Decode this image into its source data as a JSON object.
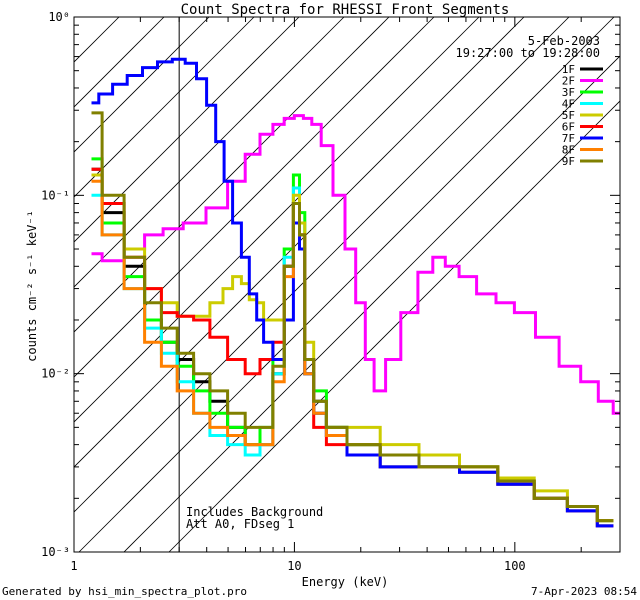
{
  "chart_data": {
    "type": "line",
    "title": "Count Spectra for RHESSI Front Segments",
    "xlabel": "Energy (keV)",
    "ylabel": "counts cm⁻² s⁻¹ keV⁻¹",
    "xscale": "log",
    "yscale": "log",
    "xlim": [
      1,
      300
    ],
    "ylim": [
      0.001,
      1
    ],
    "x_ticks": [
      {
        "value": 1,
        "label": "1"
      },
      {
        "value": 10,
        "label": "10"
      },
      {
        "value": 100,
        "label": "100"
      }
    ],
    "y_ticks": [
      {
        "value": 1,
        "label": "10⁰"
      },
      {
        "value": 0.1,
        "label": "10⁻¹"
      },
      {
        "value": 0.01,
        "label": "10⁻²"
      },
      {
        "value": 0.001,
        "label": "10⁻³"
      }
    ],
    "excluded_region": {
      "from": 1,
      "to": 3
    },
    "date": "5-Feb-2003",
    "time_range": "19:27:00 to 19:28:00",
    "annotation_lines": [
      "Includes Background",
      "Att A0, FDseg 1"
    ],
    "legend_position": "top-right",
    "series": [
      {
        "name": "1F",
        "color": "#000000",
        "points": [
          [
            1.2,
            0.14
          ],
          [
            1.5,
            0.08
          ],
          [
            1.9,
            0.04
          ],
          [
            2.3,
            0.02
          ],
          [
            2.7,
            0.015
          ],
          [
            3.2,
            0.012
          ],
          [
            3.8,
            0.009
          ],
          [
            4.5,
            0.007
          ],
          [
            5.5,
            0.005
          ],
          [
            6.5,
            0.004
          ],
          [
            7.5,
            0.004
          ],
          [
            8.5,
            0.01
          ],
          [
            9.5,
            0.04
          ],
          [
            10.3,
            0.09
          ],
          [
            10.8,
            0.06
          ],
          [
            11.5,
            0.01
          ],
          [
            13,
            0.007
          ],
          [
            15,
            0.005
          ],
          [
            20,
            0.004
          ],
          [
            30,
            0.0035
          ],
          [
            45,
            0.003
          ],
          [
            70,
            0.003
          ],
          [
            100,
            0.0025
          ],
          [
            150,
            0.002
          ],
          [
            200,
            0.0018
          ],
          [
            280,
            0.0015
          ]
        ]
      },
      {
        "name": "2F",
        "color": "#ff00ff",
        "points": [
          [
            1.2,
            0.047
          ],
          [
            1.5,
            0.043
          ],
          [
            1.9,
            0.05
          ],
          [
            2.3,
            0.06
          ],
          [
            2.8,
            0.065
          ],
          [
            3.5,
            0.07
          ],
          [
            4.5,
            0.085
          ],
          [
            5.5,
            0.12
          ],
          [
            6.5,
            0.17
          ],
          [
            7.5,
            0.22
          ],
          [
            8.5,
            0.25
          ],
          [
            9.5,
            0.27
          ],
          [
            10.5,
            0.28
          ],
          [
            11.5,
            0.27
          ],
          [
            12.5,
            0.25
          ],
          [
            14,
            0.19
          ],
          [
            16,
            0.1
          ],
          [
            18,
            0.05
          ],
          [
            20,
            0.025
          ],
          [
            22,
            0.012
          ],
          [
            24,
            0.008
          ],
          [
            28,
            0.012
          ],
          [
            33,
            0.022
          ],
          [
            40,
            0.037
          ],
          [
            45,
            0.045
          ],
          [
            52,
            0.04
          ],
          [
            60,
            0.035
          ],
          [
            75,
            0.028
          ],
          [
            90,
            0.025
          ],
          [
            110,
            0.022
          ],
          [
            140,
            0.016
          ],
          [
            180,
            0.011
          ],
          [
            220,
            0.009
          ],
          [
            260,
            0.007
          ],
          [
            300,
            0.006
          ]
        ]
      },
      {
        "name": "3F",
        "color": "#00ff00",
        "points": [
          [
            1.2,
            0.16
          ],
          [
            1.5,
            0.07
          ],
          [
            1.9,
            0.035
          ],
          [
            2.3,
            0.02
          ],
          [
            2.7,
            0.015
          ],
          [
            3.2,
            0.011
          ],
          [
            3.8,
            0.008
          ],
          [
            4.5,
            0.006
          ],
          [
            5.5,
            0.005
          ],
          [
            6.5,
            0.004
          ],
          [
            7.5,
            0.005
          ],
          [
            8.5,
            0.012
          ],
          [
            9.5,
            0.05
          ],
          [
            10.3,
            0.13
          ],
          [
            10.8,
            0.08
          ],
          [
            11.5,
            0.012
          ],
          [
            13,
            0.008
          ],
          [
            15,
            0.005
          ],
          [
            20,
            0.004
          ],
          [
            30,
            0.0035
          ],
          [
            45,
            0.003
          ],
          [
            70,
            0.003
          ],
          [
            100,
            0.0025
          ],
          [
            150,
            0.002
          ],
          [
            200,
            0.0018
          ],
          [
            280,
            0.0015
          ]
        ]
      },
      {
        "name": "4F",
        "color": "#00ffff",
        "points": [
          [
            1.2,
            0.1
          ],
          [
            1.5,
            0.06
          ],
          [
            1.9,
            0.03
          ],
          [
            2.3,
            0.018
          ],
          [
            2.7,
            0.013
          ],
          [
            3.2,
            0.009
          ],
          [
            3.8,
            0.006
          ],
          [
            4.5,
            0.0045
          ],
          [
            5.5,
            0.004
          ],
          [
            6.5,
            0.0035
          ],
          [
            7.5,
            0.004
          ],
          [
            8.5,
            0.01
          ],
          [
            9.5,
            0.045
          ],
          [
            10.3,
            0.11
          ],
          [
            10.8,
            0.07
          ],
          [
            11.5,
            0.01
          ],
          [
            13,
            0.006
          ],
          [
            15,
            0.0045
          ],
          [
            20,
            0.0035
          ],
          [
            30,
            0.003
          ],
          [
            45,
            0.003
          ],
          [
            70,
            0.0028
          ],
          [
            100,
            0.0024
          ],
          [
            150,
            0.002
          ],
          [
            200,
            0.0017
          ],
          [
            280,
            0.0014
          ]
        ]
      },
      {
        "name": "5F",
        "color": "#cccc00",
        "points": [
          [
            1.2,
            0.13
          ],
          [
            1.5,
            0.09
          ],
          [
            1.9,
            0.05
          ],
          [
            2.3,
            0.03
          ],
          [
            2.7,
            0.025
          ],
          [
            3.2,
            0.021
          ],
          [
            3.8,
            0.021
          ],
          [
            4.5,
            0.025
          ],
          [
            5,
            0.03
          ],
          [
            5.5,
            0.035
          ],
          [
            6,
            0.032
          ],
          [
            6.5,
            0.026
          ],
          [
            7,
            0.025
          ],
          [
            7.5,
            0.02
          ],
          [
            8.5,
            0.02
          ],
          [
            9.5,
            0.04
          ],
          [
            10.3,
            0.1
          ],
          [
            10.8,
            0.07
          ],
          [
            11.5,
            0.015
          ],
          [
            13,
            0.006
          ],
          [
            15,
            0.005
          ],
          [
            20,
            0.005
          ],
          [
            30,
            0.004
          ],
          [
            45,
            0.0035
          ],
          [
            70,
            0.003
          ],
          [
            100,
            0.0026
          ],
          [
            150,
            0.0022
          ],
          [
            200,
            0.0018
          ],
          [
            280,
            0.0015
          ]
        ]
      },
      {
        "name": "6F",
        "color": "#ff0000",
        "points": [
          [
            1.2,
            0.14
          ],
          [
            1.5,
            0.09
          ],
          [
            1.9,
            0.045
          ],
          [
            2.3,
            0.03
          ],
          [
            2.7,
            0.022
          ],
          [
            3.2,
            0.021
          ],
          [
            3.8,
            0.02
          ],
          [
            4.5,
            0.016
          ],
          [
            5.5,
            0.012
          ],
          [
            6.5,
            0.01
          ],
          [
            7.5,
            0.012
          ],
          [
            8.5,
            0.015
          ],
          [
            9.5,
            0.04
          ],
          [
            10.3,
            0.09
          ],
          [
            10.8,
            0.06
          ],
          [
            11.5,
            0.012
          ],
          [
            13,
            0.005
          ],
          [
            15,
            0.004
          ],
          [
            20,
            0.0035
          ],
          [
            30,
            0.003
          ],
          [
            45,
            0.003
          ],
          [
            70,
            0.0028
          ],
          [
            100,
            0.0024
          ],
          [
            150,
            0.002
          ],
          [
            200,
            0.0017
          ],
          [
            280,
            0.0014
          ]
        ]
      },
      {
        "name": "7F",
        "color": "#0000ff",
        "points": [
          [
            1.2,
            0.33
          ],
          [
            1.4,
            0.37
          ],
          [
            1.6,
            0.42
          ],
          [
            1.9,
            0.47
          ],
          [
            2.2,
            0.52
          ],
          [
            2.6,
            0.56
          ],
          [
            3,
            0.58
          ],
          [
            3.4,
            0.55
          ],
          [
            3.8,
            0.45
          ],
          [
            4.2,
            0.32
          ],
          [
            4.6,
            0.2
          ],
          [
            5,
            0.12
          ],
          [
            5.5,
            0.07
          ],
          [
            6,
            0.045
          ],
          [
            6.5,
            0.028
          ],
          [
            7,
            0.02
          ],
          [
            7.5,
            0.015
          ],
          [
            8.5,
            0.012
          ],
          [
            9.5,
            0.02
          ],
          [
            10.3,
            0.07
          ],
          [
            10.8,
            0.05
          ],
          [
            11.5,
            0.01
          ],
          [
            13,
            0.006
          ],
          [
            15,
            0.0045
          ],
          [
            20,
            0.0035
          ],
          [
            30,
            0.003
          ],
          [
            45,
            0.003
          ],
          [
            70,
            0.0028
          ],
          [
            100,
            0.0024
          ],
          [
            150,
            0.002
          ],
          [
            200,
            0.0017
          ],
          [
            280,
            0.0014
          ]
        ]
      },
      {
        "name": "8F",
        "color": "#ff8000",
        "points": [
          [
            1.2,
            0.12
          ],
          [
            1.5,
            0.06
          ],
          [
            1.9,
            0.03
          ],
          [
            2.3,
            0.015
          ],
          [
            2.7,
            0.011
          ],
          [
            3.2,
            0.008
          ],
          [
            3.8,
            0.006
          ],
          [
            4.5,
            0.005
          ],
          [
            5.5,
            0.0045
          ],
          [
            6.5,
            0.004
          ],
          [
            7.5,
            0.004
          ],
          [
            8.5,
            0.009
          ],
          [
            9.5,
            0.035
          ],
          [
            10.3,
            0.09
          ],
          [
            10.8,
            0.06
          ],
          [
            11.5,
            0.01
          ],
          [
            13,
            0.006
          ],
          [
            15,
            0.0045
          ],
          [
            20,
            0.004
          ],
          [
            30,
            0.0035
          ],
          [
            45,
            0.003
          ],
          [
            70,
            0.003
          ],
          [
            100,
            0.0025
          ],
          [
            150,
            0.002
          ],
          [
            200,
            0.0018
          ],
          [
            280,
            0.0015
          ]
        ]
      },
      {
        "name": "9F",
        "color": "#808000",
        "points": [
          [
            1.2,
            0.29
          ],
          [
            1.5,
            0.1
          ],
          [
            1.9,
            0.045
          ],
          [
            2.3,
            0.025
          ],
          [
            2.7,
            0.018
          ],
          [
            3.2,
            0.013
          ],
          [
            3.8,
            0.01
          ],
          [
            4.5,
            0.008
          ],
          [
            5.5,
            0.006
          ],
          [
            6.5,
            0.005
          ],
          [
            7.5,
            0.005
          ],
          [
            8.5,
            0.011
          ],
          [
            9.5,
            0.04
          ],
          [
            10.3,
            0.09
          ],
          [
            10.8,
            0.06
          ],
          [
            11.5,
            0.012
          ],
          [
            13,
            0.007
          ],
          [
            15,
            0.005
          ],
          [
            20,
            0.004
          ],
          [
            30,
            0.0035
          ],
          [
            45,
            0.003
          ],
          [
            70,
            0.003
          ],
          [
            100,
            0.0025
          ],
          [
            150,
            0.002
          ],
          [
            200,
            0.0018
          ],
          [
            280,
            0.0015
          ]
        ]
      }
    ]
  },
  "footer": {
    "generated_by": "Generated by hsi_min_spectra_plot.pro",
    "timestamp": "7-Apr-2023 08:54"
  }
}
